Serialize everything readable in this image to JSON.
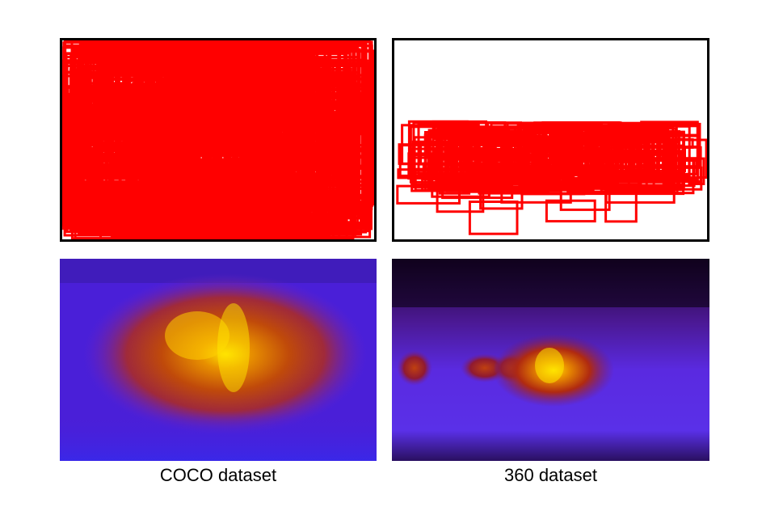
{
  "figure": {
    "panels": [
      {
        "id": "coco",
        "caption": "COCO dataset"
      },
      {
        "id": "360",
        "caption": "360 dataset"
      }
    ],
    "colors": {
      "box_stroke": "#ff0000",
      "frame": "#000000",
      "heat_low": "#4a1fd8",
      "heat_mid": "#b42a10",
      "heat_high": "#ffe000"
    }
  }
}
